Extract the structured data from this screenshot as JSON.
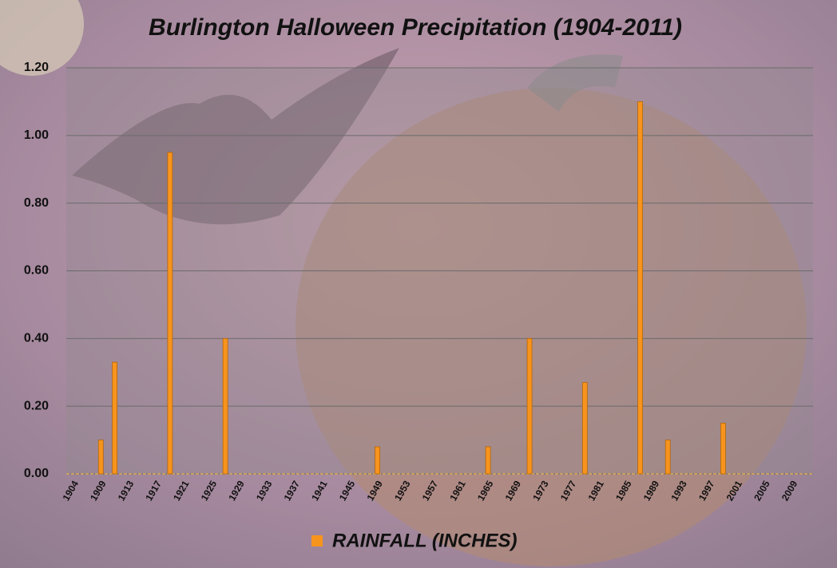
{
  "chart_data": {
    "type": "bar",
    "title": "Burlington Halloween Precipitation (1904-2011)",
    "categories": [
      "1904",
      null,
      "1909",
      null,
      "1913",
      null,
      "1917",
      null,
      "1921",
      null,
      "1925",
      null,
      "1929",
      null,
      "1933",
      null,
      "1937",
      null,
      "1941",
      null,
      "1945",
      null,
      "1949",
      null,
      "1953",
      null,
      "1957",
      null,
      "1961",
      null,
      "1965",
      null,
      "1969",
      null,
      "1973",
      null,
      "1977",
      null,
      "1981",
      null,
      "1985",
      null,
      "1989",
      null,
      "1993",
      null,
      "1997",
      null,
      "2001",
      null,
      "2005",
      null,
      "2009",
      null
    ],
    "series": [
      {
        "name": "RAINFALL (INCHES)",
        "color": "#f7941d",
        "values": [
          0,
          0,
          0.1,
          0.33,
          0,
          0,
          0,
          0.95,
          0,
          0,
          0,
          0.4,
          0,
          0,
          0,
          0,
          0,
          0,
          0,
          0,
          0,
          0,
          0.08,
          0,
          0,
          0,
          0,
          0,
          0,
          0,
          0.08,
          0,
          0,
          0.4,
          0,
          0,
          0,
          0.27,
          0,
          0,
          0,
          1.1,
          0,
          0.1,
          0,
          0,
          0,
          0.15,
          0,
          0,
          0,
          0,
          0,
          0
        ]
      }
    ],
    "ylim": [
      0,
      1.2
    ],
    "yticks": [
      {
        "value": 0,
        "label": "0.00"
      },
      {
        "value": 0.2,
        "label": "0.20"
      },
      {
        "value": 0.4,
        "label": "0.40"
      },
      {
        "value": 0.6,
        "label": "0.60"
      },
      {
        "value": 0.8,
        "label": "0.80"
      },
      {
        "value": 1,
        "label": "1.00"
      },
      {
        "value": 1.2,
        "label": "1.20"
      }
    ],
    "grid": true,
    "legend": "bottom"
  }
}
